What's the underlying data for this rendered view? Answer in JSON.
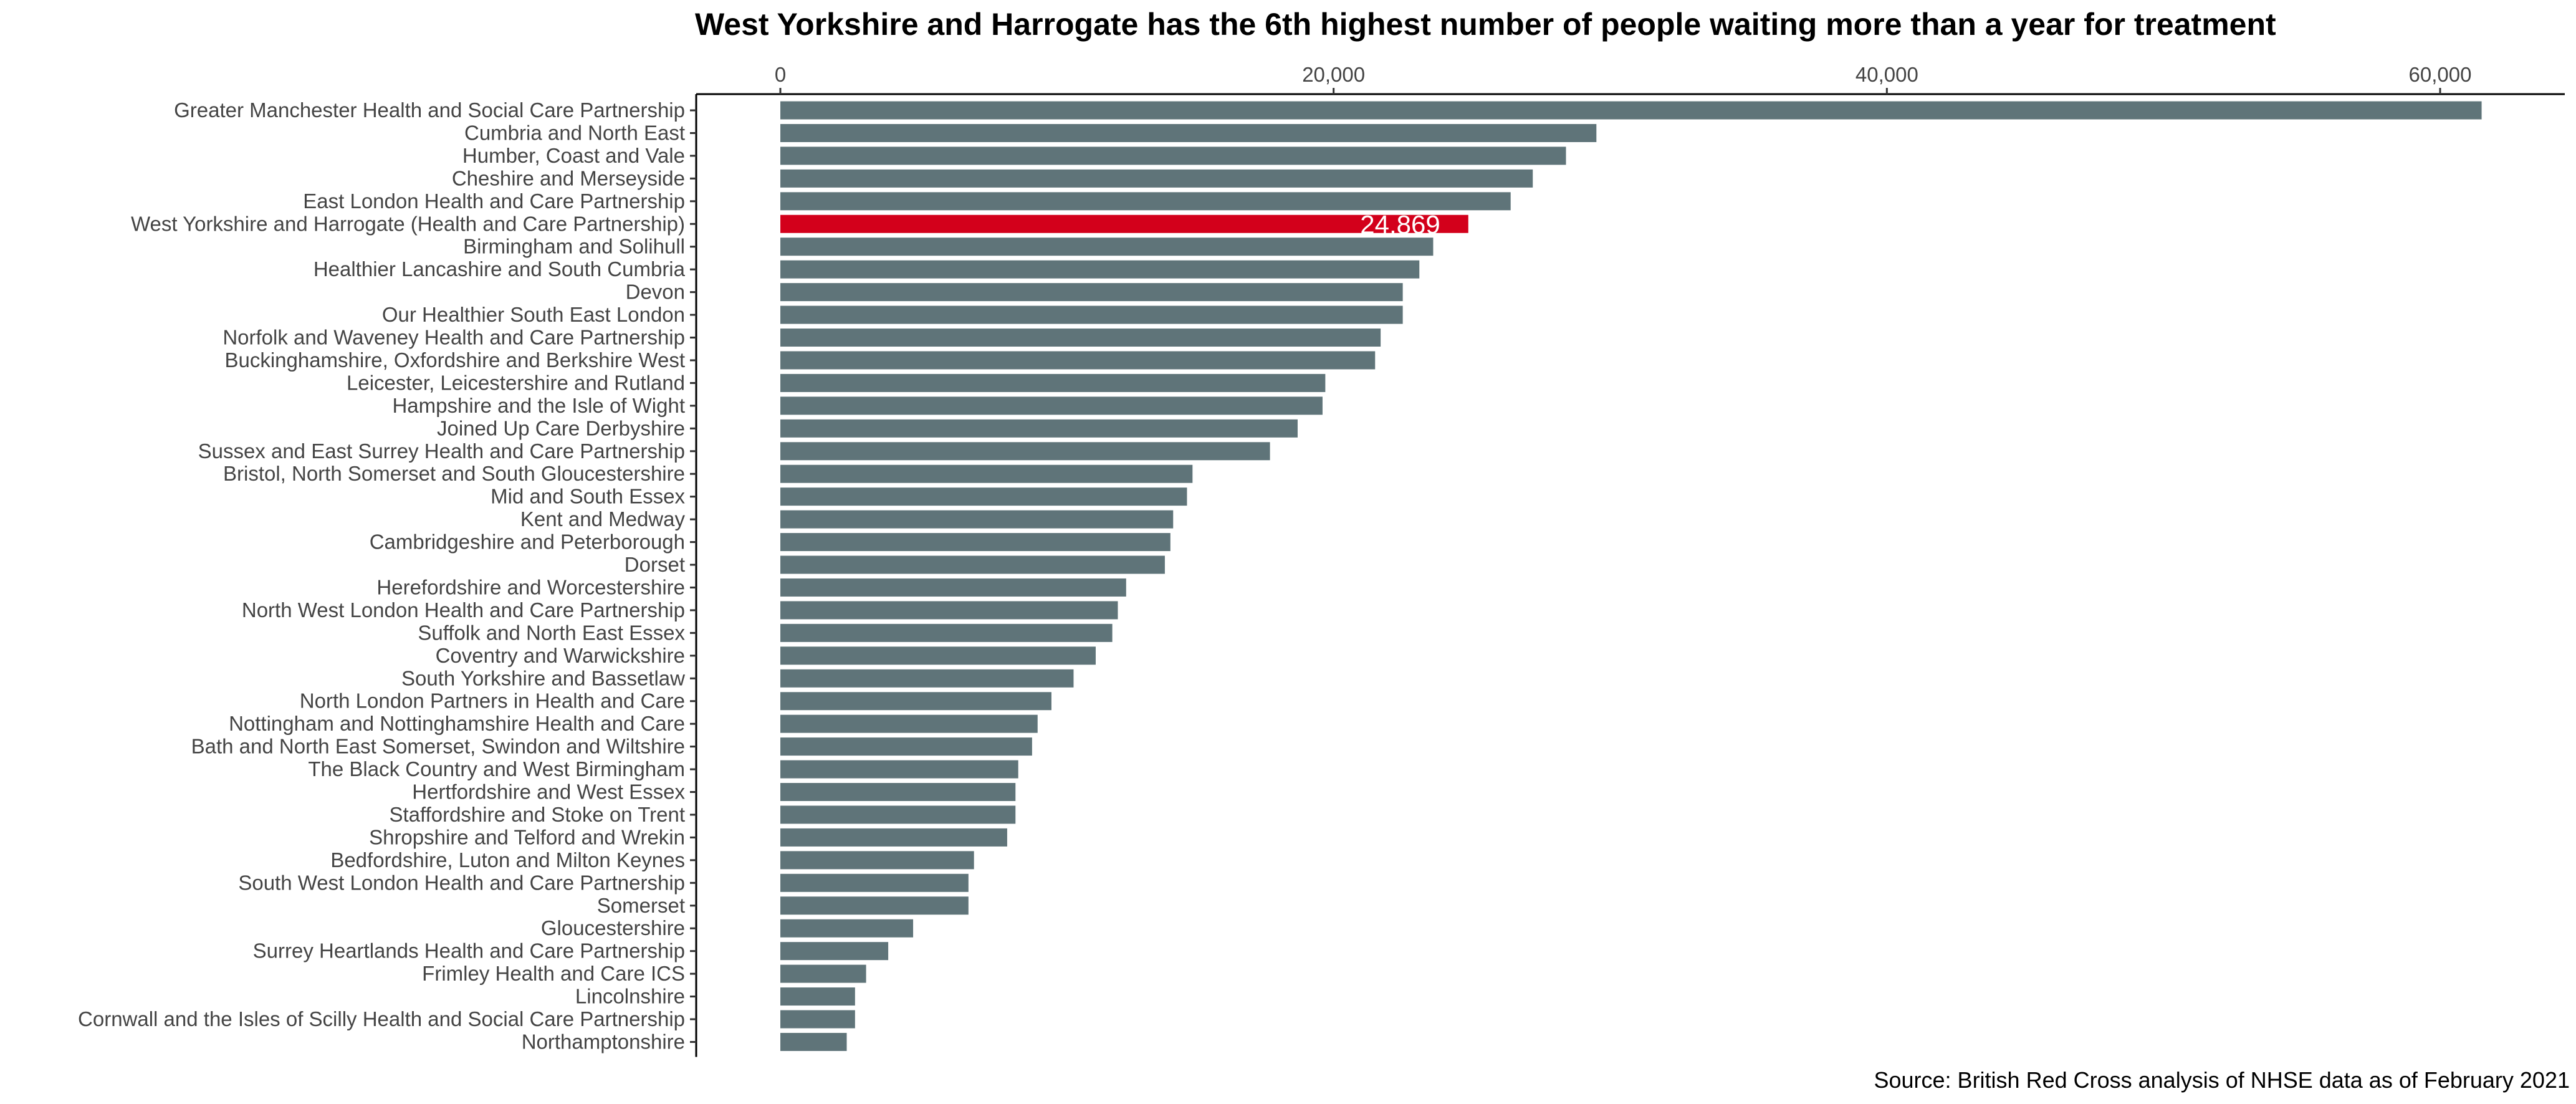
{
  "chart_data": {
    "type": "bar",
    "orientation": "horizontal",
    "title": "West Yorkshire and Harrogate has the 6th highest number of people waiting more than a year for treatment",
    "source": "Source: British Red Cross analysis of NHSE data as of February 2021",
    "xlabel": "",
    "ylabel": "",
    "xlim": [
      0,
      64000
    ],
    "xticks": [
      0,
      20000,
      40000,
      60000
    ],
    "xtick_labels": [
      "0",
      "20,000",
      "40,000",
      "60,000"
    ],
    "axis_position": "top",
    "grid": false,
    "legend": "none",
    "colors": {
      "bar": "#5f7479",
      "highlight": "#d3001b",
      "axis": "#000000"
    },
    "highlight_index": 5,
    "highlight_label": "24,869",
    "categories": [
      "Greater Manchester Health and Social Care Partnership",
      "Cumbria and North East",
      "Humber, Coast and Vale",
      "Cheshire and Merseyside",
      "East London Health and Care Partnership",
      "West Yorkshire and Harrogate (Health and Care Partnership)",
      "Birmingham and Solihull",
      "Healthier Lancashire and South Cumbria",
      "Devon",
      "Our Healthier South East London",
      "Norfolk and Waveney Health and Care Partnership",
      "Buckinghamshire, Oxfordshire and Berkshire West",
      "Leicester, Leicestershire and Rutland",
      "Hampshire and the Isle of Wight",
      "Joined Up Care Derbyshire",
      "Sussex and East Surrey Health and Care Partnership",
      "Bristol, North Somerset and South Gloucestershire",
      "Mid and South Essex",
      "Kent and Medway",
      "Cambridgeshire and Peterborough",
      "Dorset",
      "Herefordshire and Worcestershire",
      "North West London Health and Care Partnership",
      "Suffolk and North East Essex",
      "Coventry and Warwickshire",
      "South Yorkshire and Bassetlaw",
      "North London Partners in Health and Care",
      "Nottingham and Nottinghamshire Health and Care",
      "Bath and North East Somerset, Swindon and Wiltshire",
      "The Black Country and West Birmingham",
      "Hertfordshire and West Essex",
      "Staffordshire and Stoke on Trent",
      "Shropshire and Telford and Wrekin",
      "Bedfordshire, Luton and Milton Keynes",
      "South West London Health and Care Partnership",
      "Somerset",
      "Gloucestershire",
      "Surrey Heartlands Health and Care Partnership",
      "Frimley Health and Care ICS",
      "Lincolnshire",
      "Cornwall and the Isles of Scilly Health and Social Care Partnership",
      "Northamptonshire"
    ],
    "values": [
      61500,
      29500,
      28400,
      27200,
      26400,
      24869,
      23600,
      23100,
      22500,
      22500,
      21700,
      21500,
      19700,
      19600,
      18700,
      17700,
      14900,
      14700,
      14200,
      14100,
      13900,
      12500,
      12200,
      12000,
      11400,
      10600,
      9800,
      9300,
      9100,
      8600,
      8500,
      8500,
      8200,
      7000,
      6800,
      6800,
      4800,
      3900,
      3100,
      2700,
      2700,
      2400
    ]
  }
}
